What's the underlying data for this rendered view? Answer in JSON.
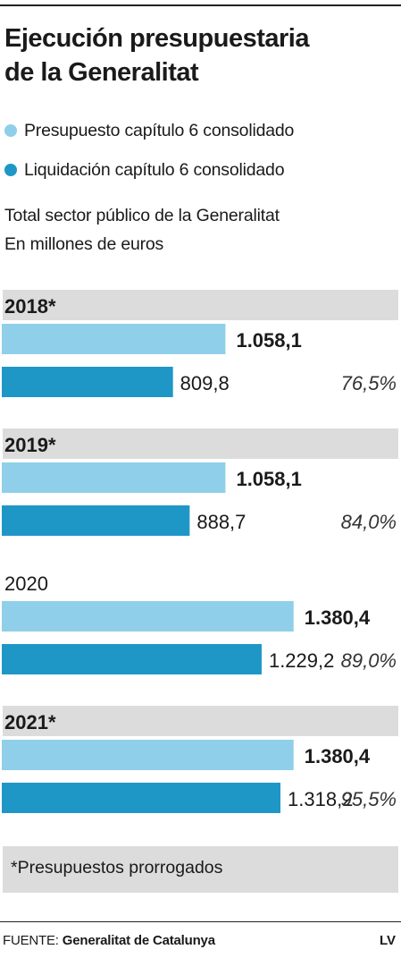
{
  "header": {
    "title_line1": "Ejecución presupuestaria",
    "title_line2": "de la Generalitat"
  },
  "legend": [
    {
      "label": "Presupuesto capítulo 6 consolidado",
      "color": "#8fcfe9"
    },
    {
      "label": "Liquidación capítulo 6 consolidado",
      "color": "#1e97c7"
    }
  ],
  "subtitle_line1": "Total sector público de la Generalitat",
  "subtitle_line2": "En millones de euros",
  "chart_data": {
    "type": "bar",
    "orientation": "horizontal",
    "categories": [
      "2018*",
      "2019*",
      "2020",
      "2021*"
    ],
    "series": [
      {
        "name": "Presupuesto capítulo 6 consolidado",
        "values": [
          1058.1,
          1058.1,
          1380.4,
          1380.4
        ],
        "labels": [
          "1.058,1",
          "1.058,1",
          "1.380,4",
          "1.380,4"
        ],
        "color": "#8fcfe9"
      },
      {
        "name": "Liquidación capítulo 6 consolidado",
        "values": [
          809.8,
          888.7,
          1229.2,
          1318.2
        ],
        "labels": [
          "809,8",
          "888,7",
          "1.229,2",
          "1.318,2"
        ],
        "color": "#1e97c7"
      }
    ],
    "execution_pct": [
      "76,5%",
      "84,0%",
      "89,0%",
      "95,5%"
    ],
    "category_bg": [
      true,
      true,
      false,
      true
    ],
    "xlim": [
      0,
      1880
    ]
  },
  "footnote": "*Presupuestos prorrogados",
  "source": {
    "label": "FUENTE:",
    "name": "Generalitat de Catalunya"
  },
  "brand": "LV"
}
